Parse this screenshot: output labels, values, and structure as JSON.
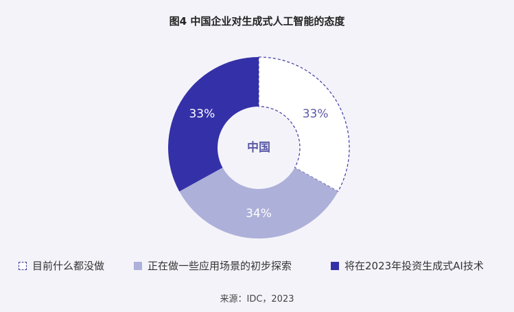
{
  "title": "图4 中国企业对生成式人工智能的态度",
  "source": "来源：IDC，2023",
  "chart_data": {
    "type": "pie",
    "center_label": "中国",
    "series": [
      {
        "name": "目前什么都没做",
        "value": 33,
        "label": "33%",
        "color": "#ffffff",
        "stroke": "#3d3aa3",
        "dashed": true,
        "label_color": "#5b5aa6"
      },
      {
        "name": "正在做一些应用场景的初步探索",
        "value": 34,
        "label": "34%",
        "color": "#adb0d9",
        "label_color": "#ffffff"
      },
      {
        "name": "将在2023年投资生成式AI技术",
        "value": 33,
        "label": "33%",
        "color": "#3431a8",
        "label_color": "#ffffff"
      }
    ]
  }
}
